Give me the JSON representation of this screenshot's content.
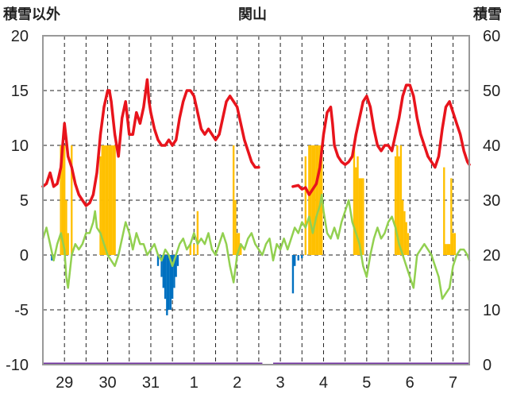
{
  "chart_data": {
    "type": "bar+line",
    "title": "関山",
    "ylabel_left": "積雪以外",
    "ylabel_right": "積雪",
    "ylim_left": [
      -10,
      20
    ],
    "ylim_right": [
      0,
      60
    ],
    "yticks_left": [
      -10,
      -5,
      0,
      5,
      10,
      15,
      20
    ],
    "yticks_right": [
      0,
      10,
      20,
      30,
      40,
      50,
      60
    ],
    "day_labels": [
      "29",
      "30",
      "31",
      "1",
      "2",
      "3",
      "4",
      "5",
      "6",
      "7"
    ],
    "x_unit": "hours from start of 28th (12:00 on 28th = 0)",
    "x_range": [
      0,
      237
    ],
    "day_centers": [
      12,
      36,
      60,
      84,
      108,
      132,
      156,
      180,
      204,
      228
    ],
    "grid": "dashed vertical every 12h, dashed horizontal every 5 units",
    "colors": {
      "snow_depth": "#e8141c",
      "temperature": "#92d050",
      "snowfall_bars": "#ffc000",
      "negative_bars": "#0070c0",
      "baseline": "#7030a0",
      "grid": "#222222"
    },
    "series": [
      {
        "id": "snow_depth",
        "axis": "right",
        "points": [
          [
            0,
            32.5
          ],
          [
            2,
            33
          ],
          [
            4,
            35
          ],
          [
            6,
            32.5
          ],
          [
            8,
            33
          ],
          [
            10,
            36
          ],
          [
            11,
            40
          ],
          [
            12,
            44
          ],
          [
            13,
            41
          ],
          [
            14,
            38
          ],
          [
            16,
            36
          ],
          [
            18,
            33
          ],
          [
            20,
            31
          ],
          [
            22,
            30
          ],
          [
            24,
            29
          ],
          [
            26,
            29.5
          ],
          [
            28,
            31
          ],
          [
            30,
            35
          ],
          [
            32,
            42
          ],
          [
            34,
            47
          ],
          [
            36,
            50
          ],
          [
            37,
            50
          ],
          [
            38,
            48
          ],
          [
            40,
            42
          ],
          [
            42,
            38
          ],
          [
            44,
            45
          ],
          [
            46,
            48
          ],
          [
            47,
            45
          ],
          [
            48,
            42
          ],
          [
            50,
            42
          ],
          [
            52,
            46
          ],
          [
            54,
            44
          ],
          [
            56,
            47
          ],
          [
            58,
            52
          ],
          [
            59,
            48
          ],
          [
            60,
            46
          ],
          [
            62,
            43
          ],
          [
            64,
            41
          ],
          [
            66,
            40
          ],
          [
            68,
            40
          ],
          [
            70,
            41
          ],
          [
            72,
            40
          ],
          [
            74,
            41
          ],
          [
            76,
            45
          ],
          [
            78,
            48
          ],
          [
            80,
            50
          ],
          [
            82,
            50
          ],
          [
            84,
            49
          ],
          [
            86,
            46
          ],
          [
            88,
            43
          ],
          [
            90,
            42
          ],
          [
            92,
            43
          ],
          [
            94,
            42
          ],
          [
            96,
            41
          ],
          [
            98,
            42
          ],
          [
            100,
            45
          ],
          [
            102,
            48
          ],
          [
            104,
            49
          ],
          [
            106,
            48
          ],
          [
            108,
            47
          ],
          [
            110,
            44
          ],
          [
            112,
            41
          ],
          [
            114,
            39
          ],
          [
            116,
            37
          ],
          [
            118,
            36
          ],
          [
            120,
            36
          ]
        ]
      },
      {
        "id": "snow_depth_b",
        "axis": "right",
        "points": [
          [
            139,
            32.5
          ],
          [
            142,
            32.7
          ],
          [
            144,
            32
          ],
          [
            146,
            32.3
          ],
          [
            148,
            31
          ],
          [
            150,
            32
          ],
          [
            152,
            33
          ],
          [
            154,
            36
          ],
          [
            156,
            42
          ],
          [
            158,
            46
          ],
          [
            160,
            47
          ],
          [
            161,
            44
          ],
          [
            162,
            40
          ],
          [
            164,
            38
          ],
          [
            166,
            37
          ],
          [
            168,
            36.5
          ],
          [
            170,
            37
          ],
          [
            172,
            38
          ],
          [
            174,
            42
          ],
          [
            176,
            45
          ],
          [
            178,
            48
          ],
          [
            180,
            49
          ],
          [
            182,
            47
          ],
          [
            184,
            43
          ],
          [
            186,
            40
          ],
          [
            188,
            39
          ],
          [
            190,
            40
          ],
          [
            192,
            40
          ],
          [
            194,
            39
          ],
          [
            196,
            42
          ],
          [
            198,
            45
          ],
          [
            200,
            49
          ],
          [
            202,
            51
          ],
          [
            204,
            51
          ],
          [
            206,
            49
          ],
          [
            208,
            45
          ],
          [
            210,
            42
          ],
          [
            212,
            40
          ],
          [
            214,
            38
          ],
          [
            216,
            37
          ],
          [
            218,
            36
          ],
          [
            220,
            38
          ],
          [
            222,
            43
          ],
          [
            224,
            47
          ],
          [
            226,
            48
          ],
          [
            228,
            46
          ],
          [
            230,
            44
          ],
          [
            232,
            42
          ],
          [
            234,
            39
          ],
          [
            236,
            37
          ],
          [
            237,
            36.5
          ]
        ]
      },
      {
        "id": "temperature",
        "axis": "left",
        "points": [
          [
            0,
            1.5
          ],
          [
            2,
            2.5
          ],
          [
            4,
            1
          ],
          [
            6,
            -0.5
          ],
          [
            8,
            1
          ],
          [
            10,
            2
          ],
          [
            12,
            0.5
          ],
          [
            13,
            -2
          ],
          [
            14,
            -3
          ],
          [
            15,
            -1.5
          ],
          [
            16,
            0
          ],
          [
            18,
            1
          ],
          [
            20,
            0.5
          ],
          [
            22,
            1
          ],
          [
            24,
            2
          ],
          [
            26,
            2
          ],
          [
            28,
            3
          ],
          [
            29,
            4
          ],
          [
            30,
            2.5
          ],
          [
            32,
            2
          ],
          [
            34,
            1
          ],
          [
            36,
            0
          ],
          [
            38,
            -0.5
          ],
          [
            40,
            -1
          ],
          [
            42,
            0
          ],
          [
            44,
            1.5
          ],
          [
            46,
            3
          ],
          [
            48,
            2
          ],
          [
            50,
            0.5
          ],
          [
            52,
            2
          ],
          [
            54,
            1
          ],
          [
            56,
            1
          ],
          [
            58,
            0
          ],
          [
            60,
            0.5
          ],
          [
            62,
            1
          ],
          [
            64,
            0
          ],
          [
            66,
            -0.5
          ],
          [
            68,
            0.5
          ],
          [
            70,
            0
          ],
          [
            72,
            -1
          ],
          [
            74,
            0
          ],
          [
            76,
            1
          ],
          [
            78,
            1.5
          ],
          [
            80,
            0.5
          ],
          [
            82,
            1
          ],
          [
            84,
            2
          ],
          [
            86,
            1
          ],
          [
            88,
            1.5
          ],
          [
            90,
            1
          ],
          [
            92,
            2
          ],
          [
            94,
            0.5
          ],
          [
            96,
            0
          ],
          [
            98,
            1
          ],
          [
            100,
            2
          ],
          [
            102,
            1
          ],
          [
            104,
            -1
          ],
          [
            106,
            -2.5
          ],
          [
            108,
            0
          ],
          [
            110,
            1
          ],
          [
            112,
            0.5
          ],
          [
            114,
            1.5
          ],
          [
            116,
            2
          ],
          [
            118,
            1
          ],
          [
            120,
            0.5
          ],
          [
            122,
            0
          ],
          [
            124,
            1
          ],
          [
            126,
            1.5
          ],
          [
            128,
            -0.5
          ],
          [
            130,
            1
          ],
          [
            132,
            0.5
          ],
          [
            134,
            1.5
          ],
          [
            136,
            0.5
          ],
          [
            138,
            1.5
          ],
          [
            140,
            2.5
          ],
          [
            142,
            2
          ],
          [
            144,
            3
          ],
          [
            146,
            2.5
          ],
          [
            148,
            3.5
          ],
          [
            150,
            2
          ],
          [
            152,
            3.5
          ],
          [
            154,
            4.5
          ],
          [
            155,
            5.5
          ],
          [
            156,
            4
          ],
          [
            158,
            2
          ],
          [
            160,
            1.5
          ],
          [
            162,
            2.5
          ],
          [
            164,
            1.5
          ],
          [
            166,
            3
          ],
          [
            168,
            4
          ],
          [
            170,
            5
          ],
          [
            172,
            3
          ],
          [
            174,
            2
          ],
          [
            176,
            1
          ],
          [
            178,
            -1
          ],
          [
            180,
            -2
          ],
          [
            182,
            0
          ],
          [
            184,
            1.5
          ],
          [
            186,
            2.5
          ],
          [
            188,
            1.5
          ],
          [
            190,
            2
          ],
          [
            192,
            3
          ],
          [
            194,
            3.5
          ],
          [
            196,
            2.5
          ],
          [
            198,
            1
          ],
          [
            200,
            0
          ],
          [
            202,
            -1
          ],
          [
            204,
            -2
          ],
          [
            206,
            -3
          ],
          [
            208,
            0
          ],
          [
            210,
            0.5
          ],
          [
            212,
            1
          ],
          [
            214,
            0.5
          ],
          [
            216,
            0
          ],
          [
            218,
            -1
          ],
          [
            220,
            -2
          ],
          [
            222,
            -4
          ],
          [
            224,
            -3.5
          ],
          [
            226,
            -3
          ],
          [
            228,
            -1
          ],
          [
            230,
            0
          ],
          [
            232,
            0.5
          ],
          [
            234,
            0.5
          ],
          [
            236,
            0
          ],
          [
            237,
            -0.5
          ]
        ]
      }
    ],
    "snowfall_bars": [
      [
        10,
        10
      ],
      [
        11,
        10
      ],
      [
        12,
        10
      ],
      [
        13,
        5
      ],
      [
        14,
        2
      ],
      [
        16,
        10
      ],
      [
        32,
        9
      ],
      [
        33,
        10
      ],
      [
        34,
        10
      ],
      [
        35,
        10
      ],
      [
        36,
        10
      ],
      [
        37,
        10
      ],
      [
        38,
        10
      ],
      [
        39,
        10
      ],
      [
        40,
        10
      ],
      [
        82,
        1
      ],
      [
        84,
        1
      ],
      [
        86,
        4
      ],
      [
        106,
        10
      ],
      [
        107,
        5
      ],
      [
        108,
        2
      ],
      [
        109,
        2
      ],
      [
        110,
        1
      ],
      [
        146,
        9
      ],
      [
        148,
        10
      ],
      [
        149,
        10
      ],
      [
        150,
        10
      ],
      [
        151,
        10
      ],
      [
        152,
        10
      ],
      [
        153,
        10
      ],
      [
        154,
        10
      ],
      [
        155,
        10
      ],
      [
        173,
        10
      ],
      [
        174,
        8
      ],
      [
        175,
        9
      ],
      [
        176,
        7
      ],
      [
        177,
        7
      ],
      [
        178,
        7
      ],
      [
        196,
        9
      ],
      [
        197,
        10
      ],
      [
        198,
        9
      ],
      [
        199,
        10
      ],
      [
        200,
        5
      ],
      [
        201,
        4
      ],
      [
        202,
        3
      ],
      [
        203,
        2
      ],
      [
        223,
        8
      ],
      [
        224,
        1
      ],
      [
        225,
        1
      ],
      [
        226,
        1
      ],
      [
        227,
        7
      ],
      [
        228,
        2
      ],
      [
        229,
        2
      ]
    ],
    "negative_bars": [
      [
        5,
        -0.5
      ],
      [
        6,
        -0.5
      ],
      [
        64,
        -1
      ],
      [
        66,
        -2
      ],
      [
        67,
        -3
      ],
      [
        68,
        -4
      ],
      [
        69,
        -5.5
      ],
      [
        70,
        -5
      ],
      [
        71,
        -5
      ],
      [
        72,
        -4
      ],
      [
        73,
        -3
      ],
      [
        74,
        -2
      ],
      [
        75,
        -1
      ],
      [
        139,
        -3.5
      ],
      [
        140,
        -1
      ],
      [
        142,
        -0.5
      ],
      [
        144,
        -0.3
      ]
    ]
  }
}
